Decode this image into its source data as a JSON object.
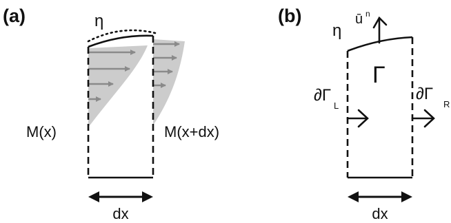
{
  "panel_a": {
    "tag": "(a)",
    "eta": "η",
    "left_flux": "M(x)",
    "right_flux": "M(x+dx)",
    "width": "dx"
  },
  "panel_b": {
    "tag": "(b)",
    "eta": "η",
    "normal": "ū",
    "normal_sup": "n",
    "region": "Γ",
    "left_boundary": "∂Γ",
    "left_boundary_sub": "L",
    "right_boundary": "∂Γ",
    "right_boundary_sub": "R",
    "width": "dx"
  },
  "colors": {
    "stroke": "#111111",
    "profile_fill": "#cccccc",
    "profile_arrows": "#8a8a8a"
  }
}
